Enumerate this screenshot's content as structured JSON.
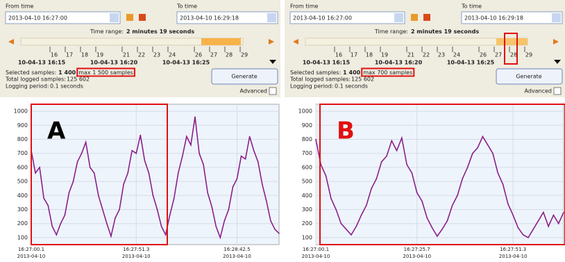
{
  "panels": [
    {
      "from_label": "From time",
      "from_value": "2013-04-10 16:27:00",
      "to_label": "To time",
      "to_value": "2013-04-10 16:29:18",
      "time_range_label": "Time range:",
      "time_range_value": "2 minutes 19 seconds",
      "timeline_numbers": [
        "16",
        "17",
        "18",
        "19",
        "21",
        "22",
        "23",
        "24",
        "26",
        "27",
        "28",
        "29"
      ],
      "timeline_dates": [
        "10-04-13 16:15",
        "10-04-13 16:20",
        "10-04-13 16:25"
      ],
      "selected_label": "Selected samples:",
      "selected_value": "1 400",
      "max_samples": "max 1 500 samples",
      "total_label": "Total logged samples:",
      "total_value": "125 602",
      "period_label": "Logging period:",
      "period_value": "0.1 seconds",
      "generate": "Generate",
      "advanced": "Advanced",
      "chart": {
        "type": "line",
        "marker": "A",
        "color": "#8a1f8a",
        "values": [
          720,
          560,
          600,
          380,
          330,
          180,
          120,
          200,
          260,
          420,
          500,
          640,
          700,
          780,
          600,
          560,
          400,
          300,
          200,
          110,
          240,
          300,
          480,
          560,
          720,
          700,
          830,
          650,
          560,
          400,
          300,
          180,
          120,
          260,
          380,
          560,
          680,
          820,
          760,
          960,
          700,
          620,
          420,
          320,
          180,
          100,
          220,
          300,
          460,
          520,
          680,
          660,
          820,
          720,
          640,
          480,
          360,
          220,
          160,
          130
        ],
        "xlim": [
          0,
          59
        ],
        "ylim": [
          50,
          1050
        ],
        "yticks": [
          100,
          200,
          300,
          400,
          500,
          600,
          700,
          800,
          900,
          1000
        ],
        "xticks": [
          {
            "value": 0,
            "label": "16:27:00.1",
            "date": "2013-04-10"
          },
          {
            "value": 25,
            "label": "16:27:51.3",
            "date": "2013-04-10"
          },
          {
            "value": 49,
            "label": "16:28:42.5",
            "date": "2013-04-10"
          }
        ]
      }
    },
    {
      "from_label": "From time",
      "from_value": "2013-04-10 16:27:00",
      "to_label": "To time",
      "to_value": "2013-04-10 16:29:18",
      "time_range_label": "Time range:",
      "time_range_value": "2 minutes 19 seconds",
      "timeline_numbers": [
        "16",
        "17",
        "18",
        "19",
        "21",
        "22",
        "23",
        "24",
        "26",
        "27",
        "28",
        "29"
      ],
      "timeline_dates": [
        "10-04-13 16:15",
        "10-04-13 16:20",
        "10-04-13 16:25"
      ],
      "selected_label": "Selected samples:",
      "selected_value": "1 400",
      "max_samples": "max 700 samples",
      "total_label": "Total logged samples:",
      "total_value": "125 602",
      "period_label": "Logging period:",
      "period_value": "0.1 seconds",
      "generate": "Generate",
      "advanced": "Advanced",
      "chart": {
        "type": "line",
        "marker": "B",
        "color": "#8a1f8a",
        "values": [
          800,
          620,
          540,
          380,
          300,
          200,
          160,
          120,
          180,
          260,
          330,
          450,
          520,
          640,
          680,
          790,
          720,
          810,
          620,
          560,
          420,
          360,
          240,
          170,
          110,
          160,
          220,
          330,
          400,
          520,
          600,
          700,
          740,
          820,
          760,
          700,
          560,
          480,
          340,
          260,
          170,
          120,
          100,
          160,
          220,
          280,
          180,
          260,
          200,
          280
        ],
        "xlim": [
          0,
          49
        ],
        "ylim": [
          50,
          1050
        ],
        "yticks": [
          100,
          200,
          300,
          400,
          500,
          600,
          700,
          800,
          900,
          1000
        ],
        "xticks": [
          {
            "value": 0,
            "label": "16:27:00.1",
            "date": "2013-04-10"
          },
          {
            "value": 20,
            "label": "16:27:25.7",
            "date": "2013-04-10"
          },
          {
            "value": 39,
            "label": "16:27:51.3",
            "date": "2013-04-10"
          }
        ]
      }
    }
  ]
}
